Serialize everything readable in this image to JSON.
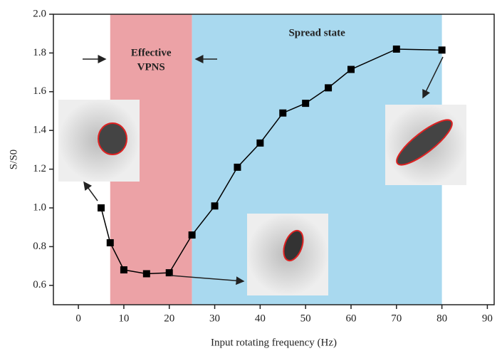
{
  "chart_data": {
    "type": "line",
    "x_label": "Input rotating frequency (Hz)",
    "y_label": "S/S0",
    "x": [
      5,
      7,
      10,
      15,
      20,
      25,
      30,
      35,
      40,
      45,
      50,
      55,
      60,
      70,
      80
    ],
    "series": [
      {
        "color": "#000000",
        "values": [
          1.0,
          0.82,
          0.68,
          0.66,
          0.665,
          0.86,
          1.01,
          1.21,
          1.335,
          1.49,
          1.54,
          1.62,
          1.715,
          1.82,
          1.815
        ]
      }
    ],
    "xlim": [
      -5.5,
      91.5
    ],
    "ylim": [
      0.5,
      2.0
    ],
    "xticks": [
      0,
      10,
      20,
      30,
      40,
      50,
      60,
      70,
      80,
      90
    ],
    "yticks": [
      0.6,
      0.8,
      {
        "value": 1.0,
        "label": "1.0"
      },
      1.2,
      1.4,
      1.6,
      1.8,
      {
        "value": 2.0,
        "label": "2.0"
      }
    ],
    "regions": [
      {
        "x0": 7,
        "x1": 25,
        "color": "#eca2a6",
        "labels": [
          "Effective",
          "VPNS"
        ]
      },
      {
        "x0": 25,
        "x1": 80,
        "color": "#a9d9ef",
        "labels": [
          "Spread state"
        ]
      }
    ]
  }
}
